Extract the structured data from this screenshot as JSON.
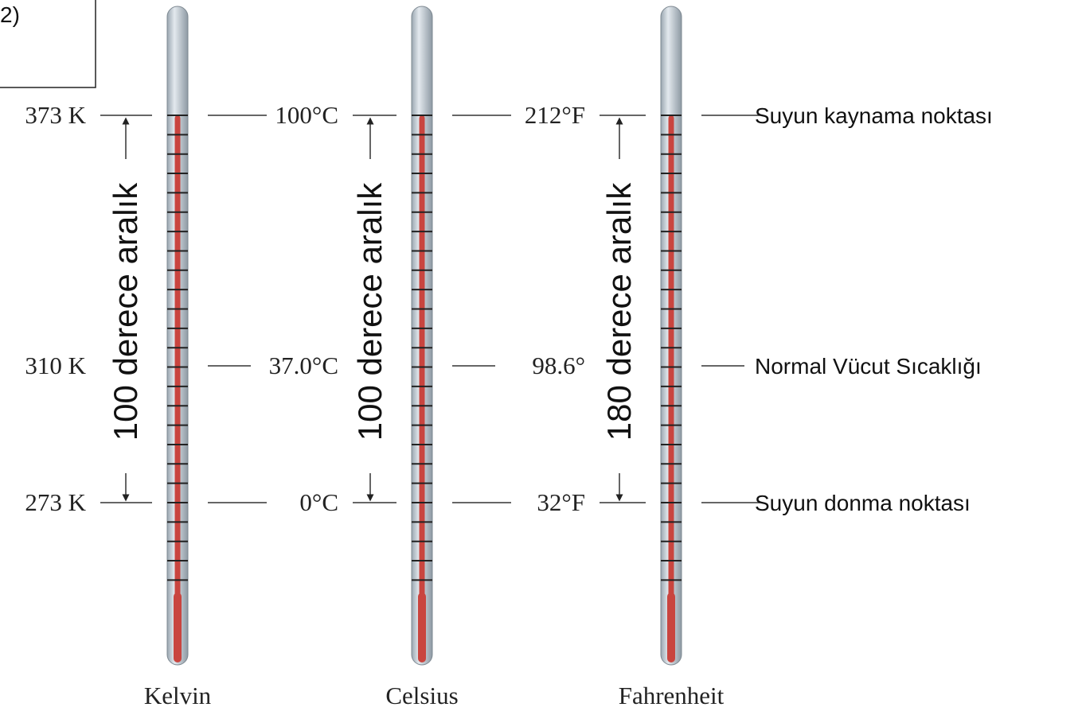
{
  "question_label": "2)",
  "thermometers": [
    {
      "name": "Kelvin",
      "labels": [
        "373 K",
        "310 K",
        "273 K"
      ],
      "interval": "100 derece aralık"
    },
    {
      "name": "Celsius",
      "labels": [
        "100°C",
        "37.0°C",
        "0°C"
      ],
      "interval": "100 derece aralık"
    },
    {
      "name": "Fahrenheit",
      "labels": [
        "212°F",
        "98.6°",
        "32°F"
      ],
      "interval": "180 derece aralık"
    }
  ],
  "descriptions": [
    "Suyun kaynama noktası",
    "Normal Vücut Sıcaklığı",
    "Suyun donma noktası"
  ]
}
